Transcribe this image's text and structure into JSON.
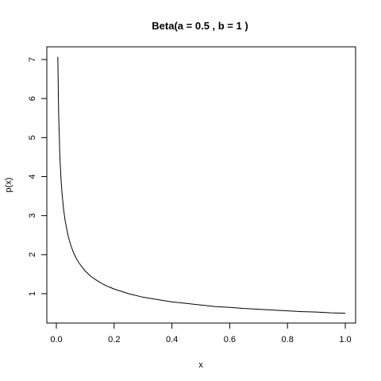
{
  "chart_data": {
    "type": "line",
    "title": "Beta(a = 0.5 , b =  1 )",
    "xlabel": "x",
    "ylabel": "p(x)",
    "xlim": [
      0,
      1
    ],
    "ylim": [
      0.5,
      7.1
    ],
    "xticks": [
      "0.0",
      "0.2",
      "0.4",
      "0.6",
      "0.8",
      "1.0"
    ],
    "yticks": [
      "1",
      "2",
      "3",
      "4",
      "5",
      "6",
      "7"
    ],
    "grid": false,
    "series": [
      {
        "x": [
          0.005,
          0.008,
          0.012,
          0.016,
          0.02,
          0.025,
          0.03,
          0.04,
          0.05,
          0.06,
          0.07,
          0.08,
          0.1,
          0.12,
          0.14,
          0.16,
          0.18,
          0.2,
          0.25,
          0.3,
          0.35,
          0.4,
          0.45,
          0.5,
          0.55,
          0.6,
          0.65,
          0.7,
          0.75,
          0.8,
          0.85,
          0.9,
          0.95,
          1.0
        ],
        "y": [
          7.07,
          5.59,
          4.56,
          3.95,
          3.54,
          3.16,
          2.89,
          2.5,
          2.24,
          2.04,
          1.89,
          1.77,
          1.58,
          1.44,
          1.34,
          1.25,
          1.18,
          1.12,
          1.0,
          0.91,
          0.85,
          0.79,
          0.75,
          0.71,
          0.67,
          0.65,
          0.62,
          0.6,
          0.58,
          0.56,
          0.54,
          0.53,
          0.51,
          0.5
        ]
      }
    ]
  }
}
